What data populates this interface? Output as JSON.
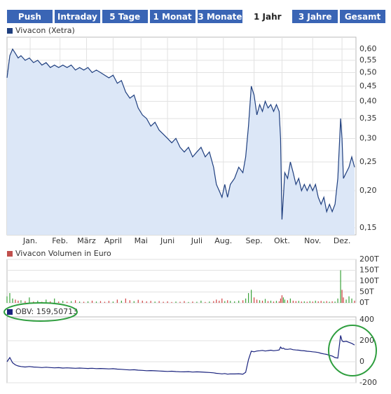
{
  "tabs": [
    "Push",
    "Intraday",
    "5 Tage",
    "1 Monat",
    "3 Monate",
    "1 Jahr",
    "3 Jahre",
    "Gesamt"
  ],
  "active_tab": 5,
  "chart_data": [
    {
      "type": "line",
      "legend": "Vivacon (Xetra)",
      "color": "#1f3f7f",
      "fill": "#dce7f7",
      "log_y": true,
      "grid": true,
      "x": [
        0,
        2,
        4,
        6,
        8,
        10,
        13,
        16,
        19,
        22,
        25,
        28,
        31,
        34,
        37,
        40,
        43,
        46,
        49,
        52,
        55,
        58,
        61,
        64,
        67,
        70,
        73,
        76,
        79,
        82,
        85,
        88,
        91,
        94,
        97,
        100,
        103,
        106,
        109,
        112,
        115,
        118,
        121,
        124,
        127,
        130,
        133,
        136,
        139,
        142,
        145,
        148,
        150,
        152,
        154,
        156,
        158,
        160,
        163,
        166,
        169,
        171,
        173,
        175,
        177,
        179,
        181,
        183,
        185,
        187,
        189,
        191,
        193,
        195,
        196,
        197,
        198,
        199,
        201,
        203,
        205,
        207,
        209,
        211,
        213,
        215,
        217,
        219,
        221,
        223,
        225,
        227,
        229,
        231,
        233,
        235,
        237,
        239,
        240,
        241,
        243,
        245,
        247,
        249
      ],
      "values": [
        0.48,
        0.57,
        0.6,
        0.58,
        0.56,
        0.57,
        0.55,
        0.56,
        0.54,
        0.55,
        0.53,
        0.54,
        0.52,
        0.53,
        0.52,
        0.53,
        0.52,
        0.53,
        0.51,
        0.52,
        0.51,
        0.52,
        0.5,
        0.51,
        0.5,
        0.49,
        0.48,
        0.49,
        0.46,
        0.47,
        0.43,
        0.41,
        0.42,
        0.38,
        0.36,
        0.35,
        0.33,
        0.34,
        0.32,
        0.31,
        0.3,
        0.29,
        0.3,
        0.28,
        0.27,
        0.28,
        0.26,
        0.27,
        0.28,
        0.26,
        0.27,
        0.24,
        0.21,
        0.2,
        0.19,
        0.21,
        0.19,
        0.21,
        0.22,
        0.24,
        0.23,
        0.26,
        0.33,
        0.45,
        0.42,
        0.36,
        0.39,
        0.37,
        0.4,
        0.38,
        0.39,
        0.37,
        0.39,
        0.37,
        0.3,
        0.16,
        0.19,
        0.23,
        0.22,
        0.25,
        0.23,
        0.21,
        0.22,
        0.2,
        0.21,
        0.2,
        0.21,
        0.2,
        0.21,
        0.19,
        0.18,
        0.19,
        0.17,
        0.18,
        0.17,
        0.18,
        0.22,
        0.35,
        0.3,
        0.22,
        0.23,
        0.24,
        0.26,
        0.24
      ],
      "xlim": [
        0,
        250
      ],
      "xticks": [
        {
          "value": 16.6,
          "label": "Jan."
        },
        {
          "value": 38,
          "label": "Feb."
        },
        {
          "value": 57,
          "label": "März"
        },
        {
          "value": 76,
          "label": "April"
        },
        {
          "value": 96,
          "label": "Mai"
        },
        {
          "value": 115,
          "label": "Juni"
        },
        {
          "value": 136,
          "label": "Juli"
        },
        {
          "value": 155,
          "label": "Aug."
        },
        {
          "value": 177,
          "label": "Sep."
        },
        {
          "value": 197,
          "label": "Okt."
        },
        {
          "value": 219,
          "label": "Nov."
        },
        {
          "value": 240,
          "label": "Dez."
        }
      ],
      "ylim": [
        0.142,
        0.658
      ],
      "yticks": [
        {
          "value": 0.15,
          "label": "0,15"
        },
        {
          "value": 0.2,
          "label": "0,20"
        },
        {
          "value": 0.25,
          "label": "0,25"
        },
        {
          "value": 0.3,
          "label": "0,30"
        },
        {
          "value": 0.35,
          "label": "0,35"
        },
        {
          "value": 0.4,
          "label": "0,40"
        },
        {
          "value": 0.45,
          "label": "0,45"
        },
        {
          "value": 0.5,
          "label": "0,50"
        },
        {
          "value": 0.55,
          "label": "0,55"
        },
        {
          "value": 0.6,
          "label": "0,60"
        }
      ]
    },
    {
      "type": "bar",
      "legend": "Vivacon Volumen in Euro",
      "color": "#c0504d",
      "color_up": "#3aa23a",
      "color_down": "#d04040",
      "grid": true,
      "x": [
        0,
        2,
        4,
        6,
        8,
        10,
        13,
        16,
        19,
        22,
        25,
        28,
        31,
        34,
        37,
        40,
        43,
        46,
        49,
        52,
        55,
        58,
        61,
        64,
        67,
        70,
        73,
        76,
        79,
        82,
        85,
        88,
        91,
        94,
        97,
        100,
        103,
        106,
        109,
        112,
        115,
        118,
        121,
        124,
        127,
        130,
        133,
        136,
        139,
        142,
        145,
        148,
        150,
        152,
        154,
        156,
        158,
        160,
        163,
        166,
        169,
        171,
        173,
        175,
        177,
        179,
        181,
        183,
        185,
        187,
        189,
        191,
        193,
        195,
        196,
        197,
        198,
        199,
        201,
        203,
        205,
        207,
        209,
        211,
        213,
        215,
        217,
        219,
        221,
        223,
        225,
        227,
        229,
        231,
        233,
        235,
        237,
        239,
        240,
        241,
        243,
        245,
        247,
        249
      ],
      "values": [
        30000,
        45000,
        20000,
        15000,
        10000,
        12000,
        8000,
        25000,
        6000,
        10000,
        5000,
        15000,
        7000,
        20000,
        6000,
        9000,
        5000,
        8000,
        12000,
        6000,
        5000,
        7000,
        10000,
        6000,
        8000,
        5000,
        9000,
        6000,
        15000,
        10000,
        20000,
        12000,
        8000,
        14000,
        10000,
        7000,
        9000,
        6000,
        8000,
        5000,
        7000,
        4000,
        6000,
        5000,
        8000,
        4000,
        6000,
        5000,
        10000,
        4000,
        6000,
        8000,
        15000,
        10000,
        20000,
        8000,
        12000,
        9000,
        7000,
        10000,
        12000,
        20000,
        45000,
        60000,
        25000,
        15000,
        12000,
        10000,
        18000,
        8000,
        10000,
        6000,
        9000,
        7000,
        20000,
        35000,
        25000,
        15000,
        12000,
        20000,
        10000,
        8000,
        9000,
        6000,
        7000,
        5000,
        8000,
        6000,
        10000,
        7000,
        9000,
        6000,
        8000,
        5000,
        7000,
        6000,
        20000,
        150000,
        60000,
        25000,
        15000,
        30000,
        20000,
        10000
      ],
      "xlim": [
        0,
        250
      ],
      "ylim": [
        0,
        200000
      ],
      "yticks": [
        {
          "value": 0,
          "label": "0T"
        },
        {
          "value": 50000,
          "label": "50T"
        },
        {
          "value": 100000,
          "label": "100T"
        },
        {
          "value": 150000,
          "label": "150T"
        },
        {
          "value": 200000,
          "label": "200T"
        }
      ]
    },
    {
      "type": "line",
      "legend": "OBV: 159,50713",
      "color": "#1a237e",
      "grid": true,
      "x": [
        0,
        2,
        4,
        6,
        8,
        10,
        13,
        16,
        19,
        22,
        25,
        28,
        31,
        34,
        37,
        40,
        43,
        46,
        49,
        52,
        55,
        58,
        61,
        64,
        67,
        70,
        73,
        76,
        79,
        82,
        85,
        88,
        91,
        94,
        97,
        100,
        103,
        106,
        109,
        112,
        115,
        118,
        121,
        124,
        127,
        130,
        133,
        136,
        139,
        142,
        145,
        148,
        150,
        152,
        154,
        156,
        158,
        160,
        163,
        166,
        169,
        171,
        173,
        175,
        177,
        179,
        181,
        183,
        185,
        187,
        189,
        191,
        193,
        195,
        196,
        197,
        198,
        199,
        201,
        203,
        205,
        207,
        209,
        211,
        213,
        215,
        217,
        219,
        221,
        223,
        225,
        227,
        229,
        231,
        233,
        235,
        237,
        239,
        240,
        241,
        243,
        245,
        247,
        249
      ],
      "values": [
        0,
        40,
        -10,
        -30,
        -40,
        -45,
        -50,
        -45,
        -50,
        -52,
        -55,
        -52,
        -55,
        -58,
        -56,
        -60,
        -58,
        -60,
        -62,
        -60,
        -62,
        -64,
        -62,
        -65,
        -64,
        -66,
        -68,
        -66,
        -70,
        -72,
        -75,
        -78,
        -76,
        -80,
        -82,
        -85,
        -84,
        -86,
        -88,
        -90,
        -92,
        -90,
        -93,
        -95,
        -96,
        -94,
        -98,
        -96,
        -97,
        -100,
        -102,
        -105,
        -110,
        -112,
        -115,
        -112,
        -118,
        -115,
        -116,
        -114,
        -118,
        -100,
        20,
        100,
        95,
        102,
        105,
        108,
        102,
        106,
        110,
        105,
        108,
        112,
        140,
        125,
        130,
        120,
        118,
        122,
        115,
        112,
        110,
        106,
        104,
        100,
        98,
        95,
        92,
        88,
        80,
        75,
        70,
        60,
        55,
        40,
        35,
        250,
        200,
        190,
        195,
        185,
        175,
        159.50713
      ],
      "xlim": [
        0,
        250
      ],
      "ylim": [
        -200,
        427
      ],
      "yticks": [
        -200,
        0,
        200,
        400
      ]
    }
  ]
}
